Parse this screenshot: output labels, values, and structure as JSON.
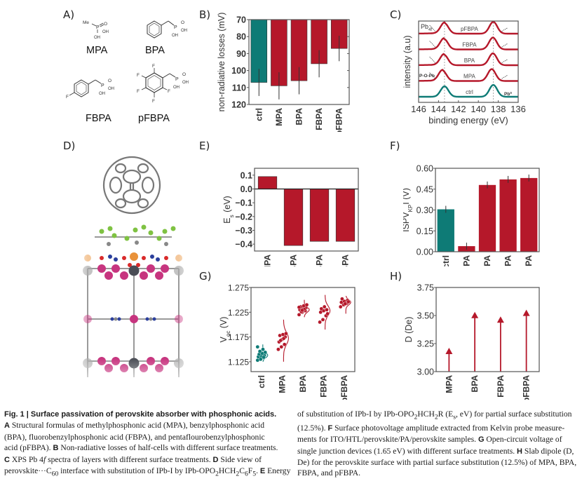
{
  "panel_labels": {
    "a": "A)",
    "b": "B)",
    "c": "C)",
    "d": "D)",
    "e": "E)",
    "f": "F)",
    "g": "G)",
    "h": "H)"
  },
  "panel_a": {
    "compounds": [
      {
        "name": "MPA",
        "atoms": {
          "me": "Me",
          "p": "P",
          "o": "O",
          "oh1": "OH",
          "oh2": "OH"
        }
      },
      {
        "name": "BPA",
        "atoms": {
          "p": "P",
          "o": "O",
          "oh1": "OH",
          "oh2": "OH"
        }
      },
      {
        "name": "FBPA",
        "atoms": {
          "f": "F",
          "p": "P",
          "o": "O",
          "oh1": "OH",
          "oh2": "OH"
        }
      },
      {
        "name": "pFBPA",
        "atoms": {
          "f": "F",
          "p": "P",
          "o": "O",
          "oh1": "OH",
          "oh2": "OH"
        }
      }
    ]
  },
  "colors": {
    "teal": "#0e7b76",
    "red": "#b5182a",
    "axis": "#555555"
  },
  "chart_data": [
    {
      "id": "B",
      "type": "bar",
      "categories": [
        "ctrl",
        "MPA",
        "BPA",
        "FBPA",
        "pFBPA"
      ],
      "values": [
        107,
        109,
        106,
        96,
        87
      ],
      "errors": [
        8,
        8,
        8,
        8,
        7.5
      ],
      "colors": [
        "teal",
        "red",
        "red",
        "red",
        "red"
      ],
      "ylabel": "non-radiative losses (mV)",
      "ylim": [
        70,
        120
      ],
      "y_inverted": true,
      "yticks": [
        "70",
        "80",
        "90",
        "100",
        "110",
        "120"
      ]
    },
    {
      "id": "C",
      "type": "line",
      "xlabel": "binding energy (eV)",
      "ylabel": "intensity (a.u)",
      "xlim": [
        146,
        136
      ],
      "x_reversed": true,
      "xticks": [
        "146",
        "144",
        "142",
        "140",
        "138",
        "136"
      ],
      "peaks": [
        143.4,
        138.5
      ],
      "series": [
        {
          "name": "ctrl",
          "color": "teal",
          "peak_shift": 0
        },
        {
          "name": "MPA",
          "color": "red",
          "peak_shift": 0.2
        },
        {
          "name": "BPA",
          "color": "red",
          "peak_shift": 0.05
        },
        {
          "name": "FBPA",
          "color": "red",
          "peak_shift": 0.05
        },
        {
          "name": "pFBPA",
          "color": "red",
          "peak_shift": 0
        }
      ],
      "annotations": {
        "pb4f_main": "Pb",
        "pb4f_sub": "4f",
        "poPb": "P-O-Pb",
        "pb0_main": "Pb",
        "pb0_sup": "0"
      }
    },
    {
      "id": "E",
      "type": "bar",
      "categories": [
        "MPA",
        "BPA",
        "FBPA",
        "pFBPA"
      ],
      "values": [
        0.09,
        -0.41,
        -0.38,
        -0.38
      ],
      "ylabel_main": "E",
      "ylabel_sub": "s",
      "ylabel_unit": " (eV)",
      "ylim": [
        -0.45,
        0.15
      ],
      "yticks": [
        "0.1",
        "0.0",
        "−0.1",
        "−0.2",
        "−0.3",
        "−0.4"
      ],
      "ytick_values": [
        0.1,
        0,
        -0.1,
        -0.2,
        -0.3,
        -0.4
      ]
    },
    {
      "id": "F",
      "type": "bar",
      "categories": [
        "ctrl",
        "MPA",
        "BPA",
        "FBPA",
        "pFBPA"
      ],
      "values": [
        0.305,
        0.04,
        0.48,
        0.52,
        0.53
      ],
      "errors": [
        0.025,
        0.025,
        0.025,
        0.025,
        0.025
      ],
      "colors": [
        "teal",
        "red",
        "red",
        "red",
        "red"
      ],
      "ylabel_main": "ISPV",
      "ylabel_sub": "KP",
      "ylabel_unit": "I (V)",
      "ylim": [
        0,
        0.6
      ],
      "yticks": [
        "0.00",
        "0.15",
        "0.30",
        "0.45",
        "0.60"
      ]
    },
    {
      "id": "G",
      "type": "scatter",
      "categories": [
        "ctrl",
        "MPA",
        "BPA",
        "FBPA",
        "pFBPA"
      ],
      "colors": [
        "teal",
        "red",
        "red",
        "red",
        "red"
      ],
      "points": [
        [
          1.128,
          1.131,
          1.133,
          1.135,
          1.136,
          1.138,
          1.14,
          1.142,
          1.144,
          1.146,
          1.15,
          1.155,
          1.13,
          1.134
        ],
        [
          1.15,
          1.155,
          1.16,
          1.165,
          1.17,
          1.175,
          1.178,
          1.18,
          1.182,
          1.168,
          1.172
        ],
        [
          1.22,
          1.225,
          1.228,
          1.23,
          1.232,
          1.234,
          1.236,
          1.238,
          1.24,
          1.226,
          1.231,
          1.235,
          1.229
        ],
        [
          1.205,
          1.21,
          1.218,
          1.225,
          1.228,
          1.23,
          1.232,
          1.236,
          1.222
        ],
        [
          1.236,
          1.24,
          1.243,
          1.245,
          1.247,
          1.249,
          1.252,
          1.242,
          1.246
        ]
      ],
      "dist_mean": [
        1.138,
        1.172,
        1.23,
        1.228,
        1.245
      ],
      "dist_range": [
        [
          1.125,
          1.16
        ],
        [
          1.125,
          1.21
        ],
        [
          1.215,
          1.25
        ],
        [
          1.19,
          1.26
        ],
        [
          1.222,
          1.258
        ]
      ],
      "ylabel_main": "V",
      "ylabel_sub": "oc",
      "ylabel_unit": " (V)",
      "ylim": [
        1.105,
        1.275
      ],
      "yticks": [
        "1.125",
        "1.175",
        "1.225",
        "1.275"
      ],
      "ytick_values": [
        1.125,
        1.175,
        1.225,
        1.275
      ]
    },
    {
      "id": "H",
      "type": "stem",
      "categories": [
        "MPA",
        "BPA",
        "FBPA",
        "pFBPA"
      ],
      "values": [
        3.2,
        3.52,
        3.48,
        3.54
      ],
      "ylabel": "D (De)",
      "ylim": [
        3.0,
        3.75
      ],
      "yticks": [
        "3.00",
        "3.25",
        "3.50",
        "3.75"
      ]
    }
  ],
  "caption": {
    "fig": "Fig. 1 | Surface passivation of perovskite absorber with phosphonic acids.",
    "A": "A",
    "a_text": " Structural formulas of methylphosphonic acid (MPA), benzylphosphonic acid",
    "a_text2": "(BPA), fluorobenzylphosphonic acid (FBPA), and pentaflourobenzylphosphonic",
    "a_text3": "acid (pFBPA). ",
    "B": "B",
    "b_text": " Non-radiative losses of half-cells with different surface treatments.",
    "C": "C",
    "c_text": " XPS Pb 4",
    "c_f": "f",
    "c_text2": " spectra of layers with different surface treatments. ",
    "D": "D",
    "d_text": " Side view of",
    "d_text2a": "perovskite···C",
    "d_sub60": "60",
    "d_text2b": " interface with substitution of IPb-I by IPb-OPO",
    "d_sub2": "2",
    "d_text2c": "HCH",
    "d_sub2b": "2",
    "d_text2d": "C",
    "d_sub6": "6",
    "d_text2e": "F",
    "d_sub5": "5",
    "d_text2f": ". ",
    "E": "E",
    "e_text": " Energy",
    "r1a": "of substitution of IPb-I by IPb-OPO",
    "r1_sub2": "2",
    "r1b": "HCH",
    "r1_sub2b": "2",
    "r1c": "R (E",
    "r1_subs": "s",
    "r1d": ", eV) for partial surface substitution",
    "r2a": "(12.5%). ",
    "F": "F",
    "r2b": " Surface photovoltage amplitude extracted from Kelvin probe measure-",
    "r3": "ments for ITO/HTL/perovskite/PA/perovskite samples. ",
    "G": "G",
    "r3b": " Open-circuit voltage of",
    "r4a": "single junction devices (1.65 eV) with different surface treatments. ",
    "H": "H",
    "r4b": " Slab dipole (D,",
    "r5": "De) for the perovskite surface with partial surface substitution (12.5%) of MPA, BPA,",
    "r6": "FBPA, and pFBPA."
  }
}
